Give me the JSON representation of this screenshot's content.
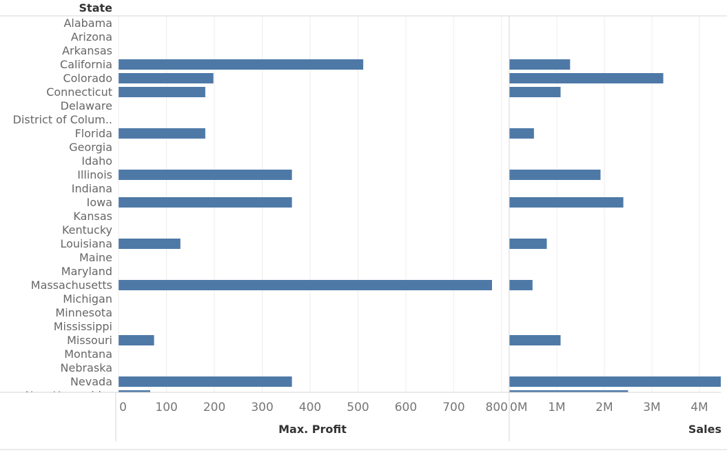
{
  "chart_data": {
    "type": "bar",
    "orientation": "horizontal",
    "row_header": "State",
    "categories": [
      "Alabama",
      "Arizona",
      "Arkansas",
      "California",
      "Colorado",
      "Connecticut",
      "Delaware",
      "District of Colum..",
      "Florida",
      "Georgia",
      "Idaho",
      "Illinois",
      "Indiana",
      "Iowa",
      "Kansas",
      "Kentucky",
      "Louisiana",
      "Maine",
      "Maryland",
      "Massachusetts",
      "Michigan",
      "Minnesota",
      "Mississippi",
      "Missouri",
      "Montana",
      "Nebraska",
      "Nevada",
      "New Hampshire"
    ],
    "panels": [
      {
        "xlabel": "Max. Profit",
        "xlim": [
          -6,
          816
        ],
        "ticks": [
          0,
          100,
          200,
          300,
          400,
          500,
          600,
          700,
          800
        ],
        "tick_labels": [
          "0",
          "100",
          "200",
          "300",
          "400",
          "500",
          "600",
          "700",
          "800"
        ],
        "values": [
          null,
          null,
          null,
          511,
          198,
          181,
          null,
          null,
          181,
          null,
          null,
          362,
          null,
          362,
          null,
          null,
          129,
          null,
          null,
          780,
          null,
          null,
          null,
          74,
          null,
          null,
          362,
          66
        ]
      },
      {
        "xlabel": "Sales",
        "xlim": [
          0,
          4450000
        ],
        "ticks": [
          0,
          1000000,
          2000000,
          3000000,
          4000000
        ],
        "tick_labels": [
          "0M",
          "1M",
          "2M",
          "3M",
          "4M"
        ],
        "values": [
          null,
          null,
          null,
          1280000,
          3240000,
          1080000,
          null,
          null,
          520000,
          null,
          null,
          1920000,
          null,
          2400000,
          null,
          null,
          790000,
          null,
          null,
          490000,
          null,
          null,
          null,
          1080000,
          null,
          null,
          4450000,
          2500000
        ]
      }
    ],
    "color": "#4e79a7",
    "grid": true
  }
}
